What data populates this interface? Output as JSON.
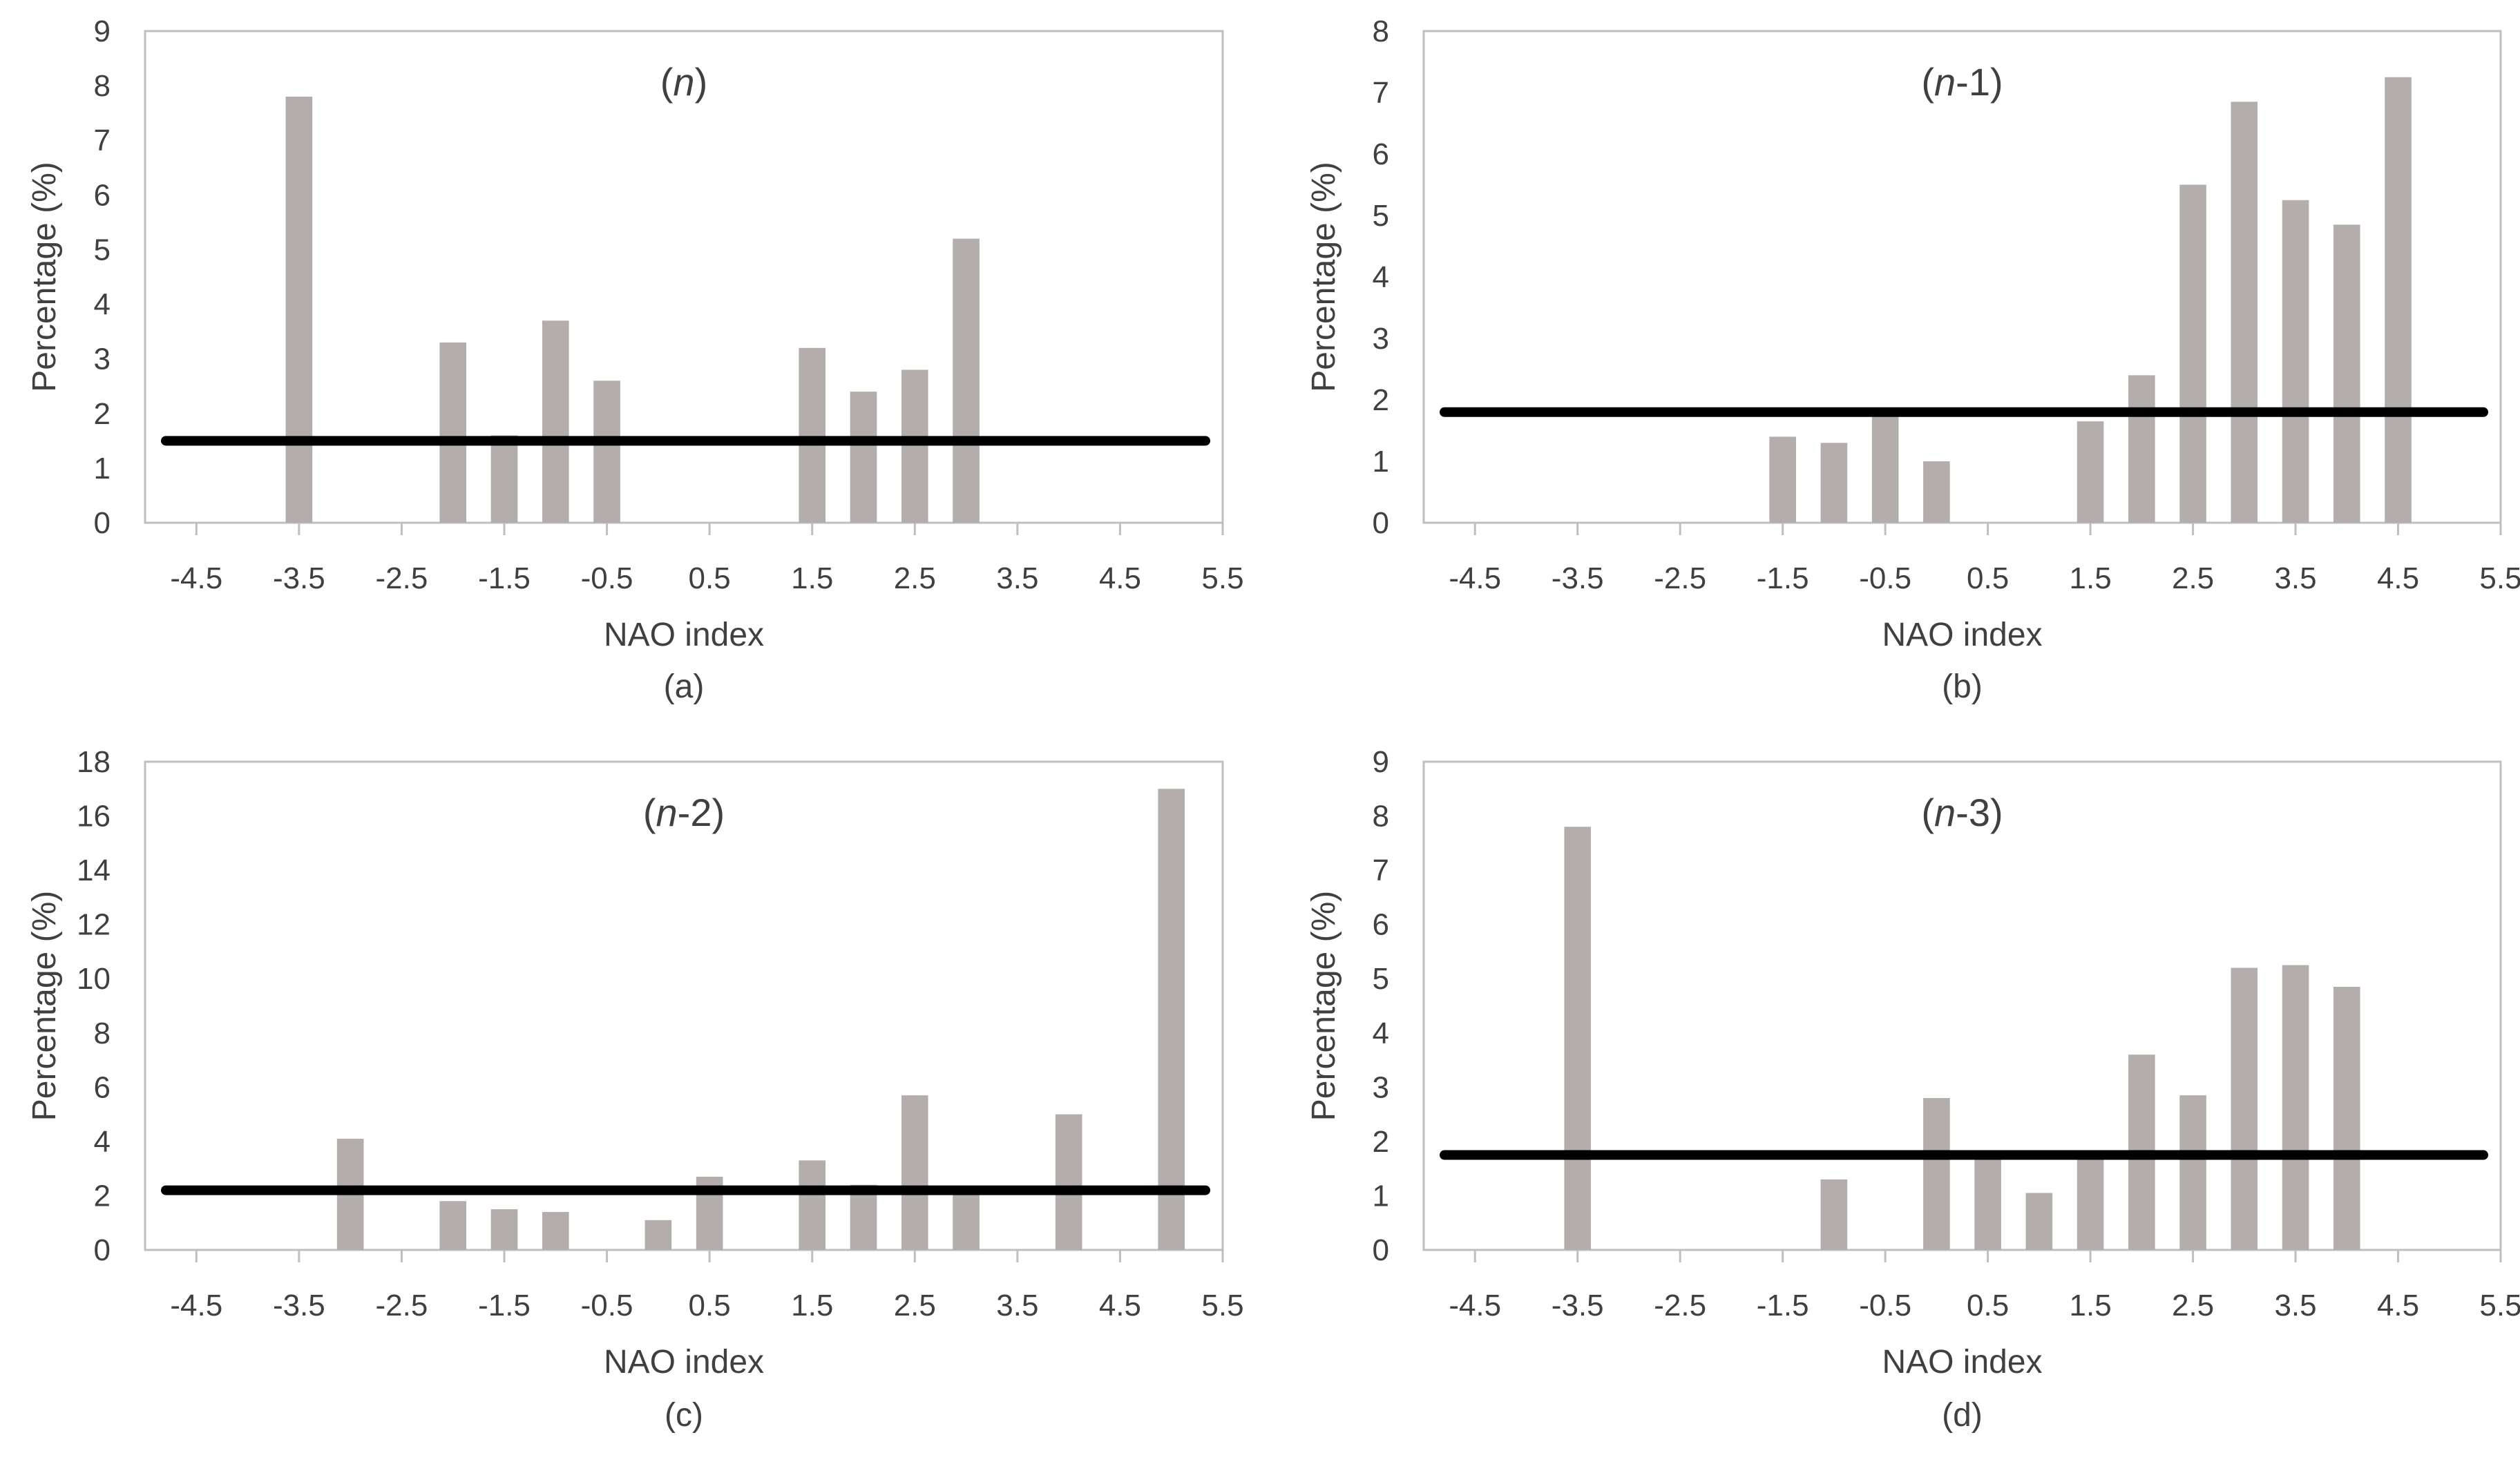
{
  "x_tick_labels": [
    "-4.5",
    "-3.5",
    "-2.5",
    "-1.5",
    "-0.5",
    "0.5",
    "1.5",
    "2.5",
    "3.5",
    "4.5",
    "5.5"
  ],
  "chart_data": [
    {
      "type": "bar",
      "panel": "(a)",
      "title_prefix": "(",
      "title_italic": "n",
      "title_suffix": ")",
      "xlabel": "NAO index",
      "ylabel": "Percentage (%)",
      "xlim": [
        -5.0,
        5.5
      ],
      "ylim": [
        0,
        9
      ],
      "yticks": [
        0,
        1,
        2,
        3,
        4,
        5,
        6,
        7,
        8,
        9
      ],
      "bars": [
        {
          "x": -3.5,
          "value": 7.8
        },
        {
          "x": -2.0,
          "value": 3.3
        },
        {
          "x": -1.5,
          "value": 1.6
        },
        {
          "x": -1.0,
          "value": 3.7
        },
        {
          "x": -0.5,
          "value": 2.6
        },
        {
          "x": 1.5,
          "value": 3.2
        },
        {
          "x": 2.0,
          "value": 2.4
        },
        {
          "x": 2.5,
          "value": 2.8
        },
        {
          "x": 3.0,
          "value": 5.2
        }
      ],
      "reference_line": 1.5,
      "grid": false
    },
    {
      "type": "bar",
      "panel": "(b)",
      "title_prefix": "(",
      "title_italic": "n",
      "title_suffix": "-1)",
      "xlabel": "NAO index",
      "ylabel": "Percentage (%)",
      "xlim": [
        -5.0,
        5.5
      ],
      "ylim": [
        0,
        8
      ],
      "yticks": [
        0,
        1,
        2,
        3,
        4,
        5,
        6,
        7,
        8
      ],
      "bars": [
        {
          "x": -1.5,
          "value": 1.4
        },
        {
          "x": -1.0,
          "value": 1.3
        },
        {
          "x": -0.5,
          "value": 1.8
        },
        {
          "x": 0.0,
          "value": 1.0
        },
        {
          "x": 1.5,
          "value": 1.65
        },
        {
          "x": 2.0,
          "value": 2.4
        },
        {
          "x": 2.5,
          "value": 5.5
        },
        {
          "x": 3.0,
          "value": 6.85
        },
        {
          "x": 3.5,
          "value": 5.25
        },
        {
          "x": 4.0,
          "value": 4.85
        },
        {
          "x": 4.5,
          "value": 7.25
        }
      ],
      "reference_line": 1.8,
      "grid": false
    },
    {
      "type": "bar",
      "panel": "(c)",
      "title_prefix": "(",
      "title_italic": "n",
      "title_suffix": "-2)",
      "xlabel": "NAO index",
      "ylabel": "Percentage (%)",
      "xlim": [
        -5.0,
        5.5
      ],
      "ylim": [
        0,
        18
      ],
      "yticks": [
        0,
        2,
        4,
        6,
        8,
        10,
        12,
        14,
        16,
        18
      ],
      "bars": [
        {
          "x": -3.0,
          "value": 4.1
        },
        {
          "x": -2.0,
          "value": 1.8
        },
        {
          "x": -1.5,
          "value": 1.5
        },
        {
          "x": -1.0,
          "value": 1.4
        },
        {
          "x": 0.0,
          "value": 1.1
        },
        {
          "x": 0.5,
          "value": 2.7
        },
        {
          "x": 1.5,
          "value": 3.3
        },
        {
          "x": 2.0,
          "value": 2.4
        },
        {
          "x": 2.5,
          "value": 5.7
        },
        {
          "x": 3.0,
          "value": 2.2
        },
        {
          "x": 4.0,
          "value": 5.0
        },
        {
          "x": 5.0,
          "value": 17.0
        }
      ],
      "reference_line": 2.2,
      "grid": false
    },
    {
      "type": "bar",
      "panel": "(d)",
      "title_prefix": "(",
      "title_italic": "n",
      "title_suffix": "-3)",
      "xlabel": "NAO index",
      "ylabel": "Percentage (%)",
      "xlim": [
        -5.0,
        5.5
      ],
      "ylim": [
        0,
        9
      ],
      "yticks": [
        0,
        1,
        2,
        3,
        4,
        5,
        6,
        7,
        8,
        9
      ],
      "bars": [
        {
          "x": -3.5,
          "value": 7.8
        },
        {
          "x": -1.0,
          "value": 1.3
        },
        {
          "x": 0.0,
          "value": 2.8
        },
        {
          "x": 0.5,
          "value": 1.8
        },
        {
          "x": 1.0,
          "value": 1.05
        },
        {
          "x": 1.5,
          "value": 1.75
        },
        {
          "x": 2.0,
          "value": 3.6
        },
        {
          "x": 2.5,
          "value": 2.85
        },
        {
          "x": 3.0,
          "value": 5.2
        },
        {
          "x": 3.5,
          "value": 5.25
        },
        {
          "x": 4.0,
          "value": 4.85
        }
      ],
      "reference_line": 1.75,
      "grid": false
    }
  ],
  "colors": {
    "bar": "#b3aeac",
    "reference_line": "#000000",
    "frame": "#bfbfbf",
    "text": "#404040"
  }
}
